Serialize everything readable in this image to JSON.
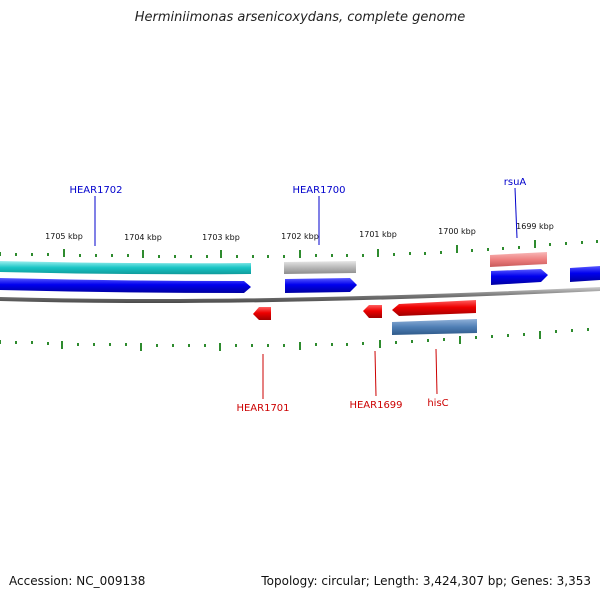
{
  "title": "Herminiimonas arsenicoxydans, complete genome",
  "footer": {
    "accession": "Accession: NC_009138",
    "summary": "Topology: circular; Length: 3,424,307 bp; Genes: 3,353"
  },
  "colors": {
    "tick": "#2e8b2e",
    "backbone": "#8a8a8a",
    "label_forward": "#0000cc",
    "label_reverse": "#cc0000",
    "cds_forward": "#0000ee",
    "cds_reverse": "#ee0000",
    "cyan_feature": "#19c5c5",
    "gray_feature": "#b8b8b8",
    "pink_feature": "#ee8080",
    "steel_feature": "#4f7fb5"
  },
  "scale_labels": [
    "1705 kbp",
    "1704 kbp",
    "1703 kbp",
    "1702 kbp",
    "1701 kbp",
    "1700 kbp",
    "1699 kbp"
  ],
  "gene_labels": {
    "forward": [
      "HEAR1702",
      "HEAR1700",
      "rsuA"
    ],
    "reverse": [
      "HEAR1701",
      "HEAR1699",
      "hisC"
    ]
  }
}
